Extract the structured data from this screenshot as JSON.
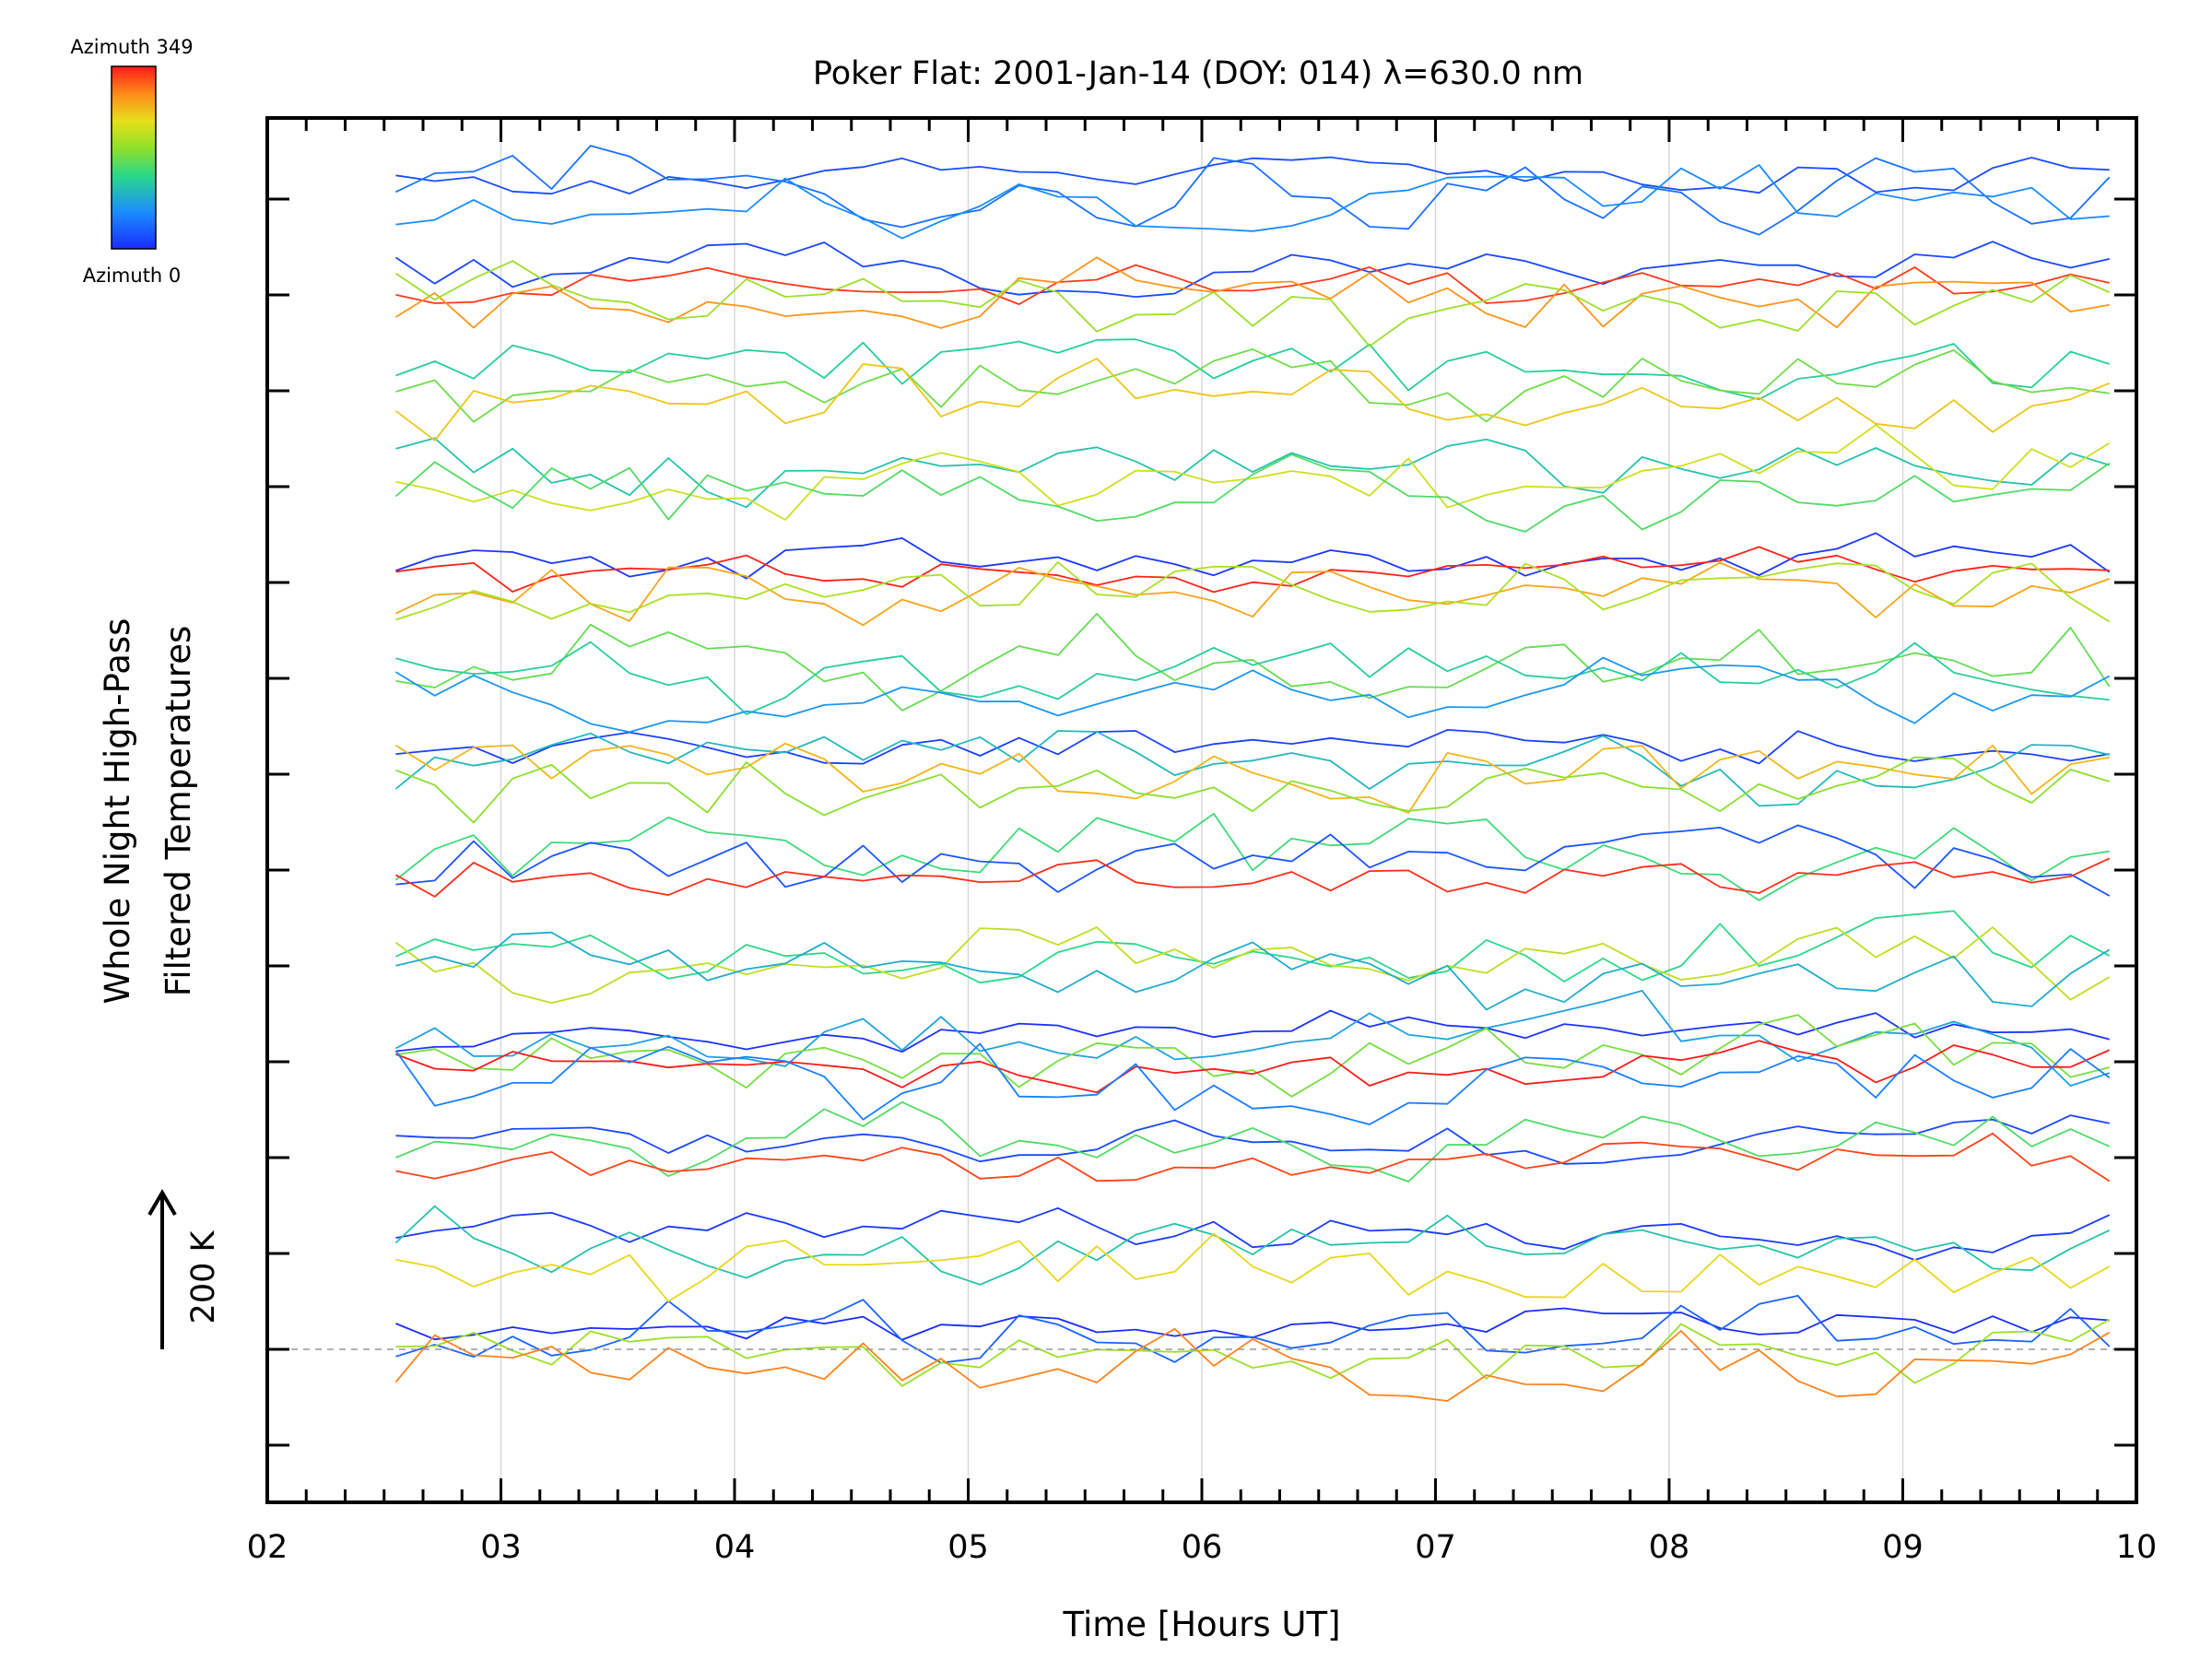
{
  "chart_data": {
    "type": "line",
    "title": "Poker Flat: 2001-Jan-14 (DOY: 014) λ=630.0 nm",
    "xlabel": "Time [Hours UT]",
    "ylabel_line1": "Whole Night High-Pass",
    "ylabel_line2": "Filtered Temperatures",
    "scale_label": "200 K",
    "colorbar_top": "Azimuth 349",
    "colorbar_bottom": "Azimuth 0",
    "xlim": [
      2,
      10
    ],
    "x_tick_labels": [
      "02",
      "03",
      "04",
      "05",
      "06",
      "07",
      "08",
      "09",
      "10"
    ],
    "x_start": 2.55,
    "x_step": 0.1667,
    "n_points": 45,
    "baseline_lines": [
      {
        "offset": 1,
        "azimuths": [
          0,
          40,
          200,
          300
        ]
      },
      {
        "offset": 2,
        "azimuths": [
          10,
          120,
          250
        ]
      },
      {
        "offset": 3,
        "azimuths": [
          20,
          160,
          330
        ]
      },
      {
        "offset": 4,
        "azimuths": [
          5,
          90,
          180,
          349,
          60
        ]
      },
      {
        "offset": 5,
        "azimuths": [
          140,
          220,
          100
        ]
      },
      {
        "offset": 6,
        "azimuths": [
          150,
          30,
          340
        ]
      },
      {
        "offset": 7,
        "azimuths": [
          15,
          110,
          270,
          190
        ]
      },
      {
        "offset": 8,
        "azimuths": [
          170,
          130,
          80
        ]
      },
      {
        "offset": 9,
        "azimuths": [
          8,
          345,
          280,
          210
        ]
      },
      {
        "offset": 10,
        "azimuths": [
          120,
          230,
          160
        ]
      },
      {
        "offset": 11,
        "azimuths": [
          130,
          175,
          260
        ]
      },
      {
        "offset": 12,
        "azimuths": [
          20,
          335,
          290,
          200
        ]
      },
      {
        "offset": 13,
        "azimuths": [
          25,
          50,
          70
        ]
      }
    ],
    "offset_spacing_K": 200,
    "grid_x": true,
    "colorbar_colors": [
      "#0000ff",
      "#0080ff",
      "#00ff80",
      "#80ff00",
      "#ffff00",
      "#ff8000",
      "#ff0000"
    ]
  }
}
